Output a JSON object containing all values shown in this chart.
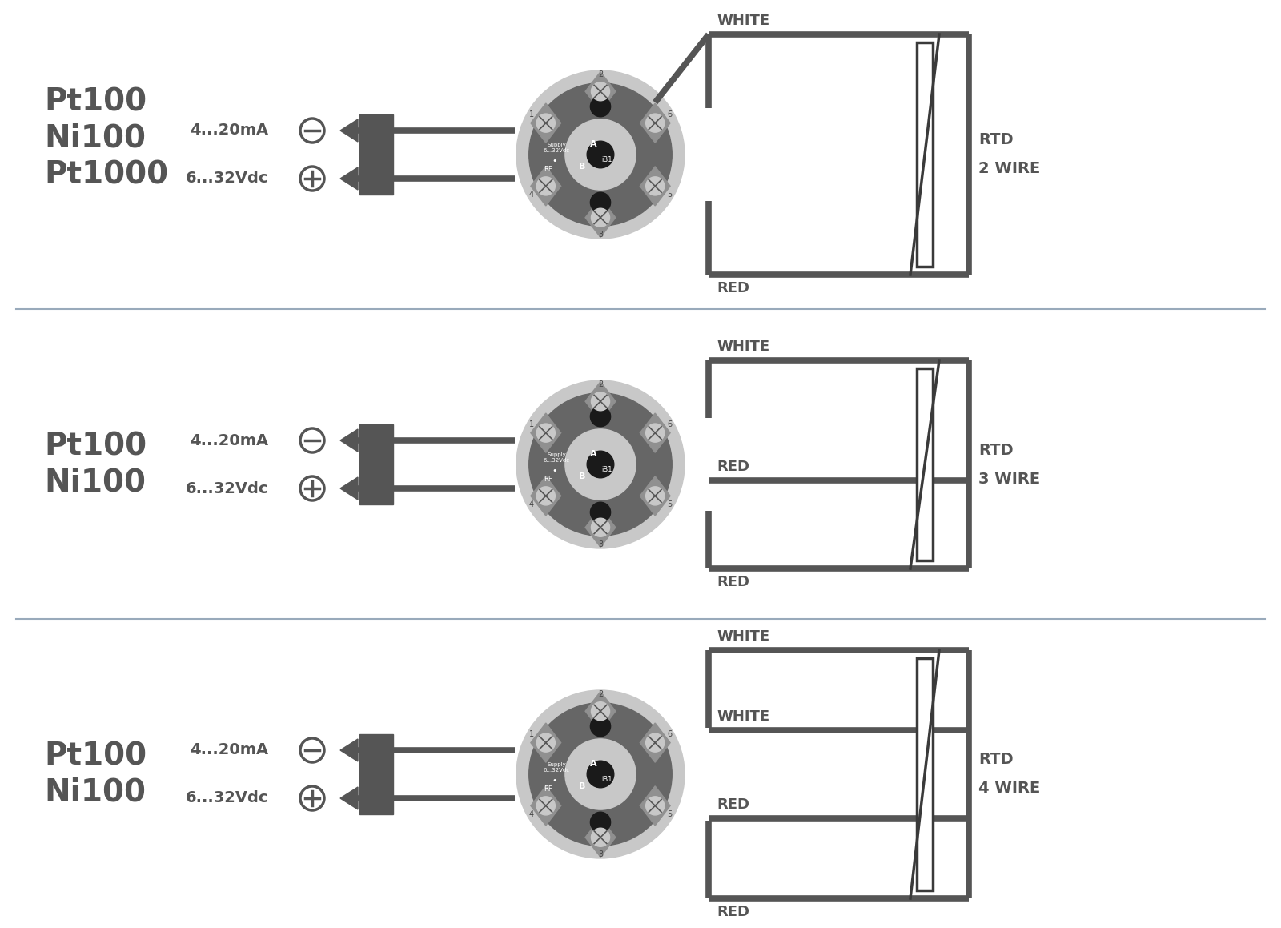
{
  "bg_color": "#ffffff",
  "dark_color": "#555555",
  "darker_color": "#3a3a3a",
  "light_gray": "#d0d0d0",
  "medium_gray": "#909090",
  "circle_bg": "#c8c8c8",
  "circle_dark": "#666666",
  "separator_color": "#99aabb",
  "text_color": "#333333",
  "sections": [
    {
      "label_lines": [
        "Pt100",
        "Ni100",
        "Pt1000"
      ],
      "rtd_label": "RTD\n2 WIRE",
      "wire_labels_right": [
        "WHITE",
        "RED"
      ],
      "wire_count": 2
    },
    {
      "label_lines": [
        "Pt100",
        "Ni100"
      ],
      "rtd_label": "RTD\n3 WIRE",
      "wire_labels_right": [
        "WHITE",
        "RED",
        "RED"
      ],
      "wire_count": 3
    },
    {
      "label_lines": [
        "Pt100",
        "Ni100"
      ],
      "rtd_label": "RTD\n4 WIRE",
      "wire_labels_right": [
        "WHITE",
        "WHITE",
        "RED",
        "RED"
      ],
      "wire_count": 4
    }
  ],
  "supply_labels": [
    "4...20mA",
    "6...32Vdc"
  ],
  "figsize": [
    16.0,
    11.59
  ],
  "dpi": 100
}
